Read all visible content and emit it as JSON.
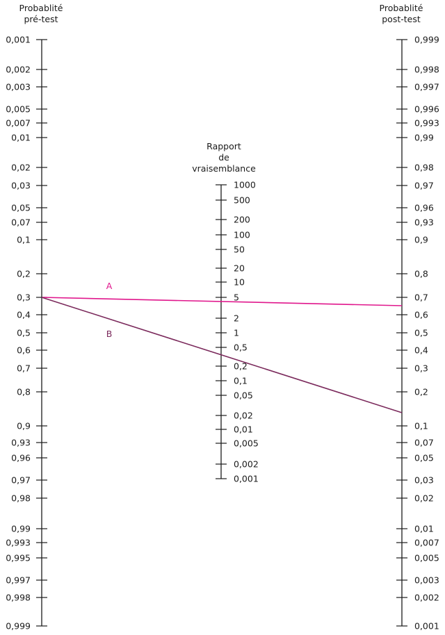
{
  "pretest": {
    "title_line1": "Probablité",
    "title_line2": "pré-test",
    "ticks": [
      "0,001",
      "0,002",
      "0,003",
      "0,005",
      "0,007",
      "0,01",
      "0,02",
      "0,03",
      "0,05",
      "0,07",
      "0,1",
      "0,2",
      "0,3",
      "0,4",
      "0,5",
      "0,6",
      "0,7",
      "0,8",
      "0,9",
      "0,93",
      "0,96",
      "0,97",
      "0,98",
      "0,99",
      "0,993",
      "0,995",
      "0,997",
      "0,998",
      "0,999"
    ]
  },
  "likelihood_ratio": {
    "title_line1": "Rapport",
    "title_line2": "de",
    "title_line3": "vraisemblance",
    "ticks": [
      "1000",
      "500",
      "200",
      "100",
      "50",
      "20",
      "10",
      "5",
      "2",
      "1",
      "0,5",
      "0,2",
      "0,1",
      "0,05",
      "0,02",
      "0,01",
      "0,005",
      "0,002",
      "0,001"
    ]
  },
  "posttest": {
    "title_line1": "Probablité",
    "title_line2": "post-test",
    "ticks": [
      "0,999",
      "0,998",
      "0,997",
      "0,996",
      "0,993",
      "0,99",
      "0,98",
      "0,97",
      "0,96",
      "0,93",
      "0,9",
      "0,8",
      "0,7",
      "0,6",
      "0,5",
      "0,4",
      "0,3",
      "0,2",
      "0,1",
      "0,07",
      "0,05",
      "0,03",
      "0,02",
      "0,01",
      "0,007",
      "0,005",
      "0,003",
      "0,002",
      "0,001"
    ]
  },
  "lines": [
    {
      "label": "A",
      "color": "#e0168c"
    },
    {
      "label": "B",
      "color": "#7b2a5c"
    }
  ]
}
